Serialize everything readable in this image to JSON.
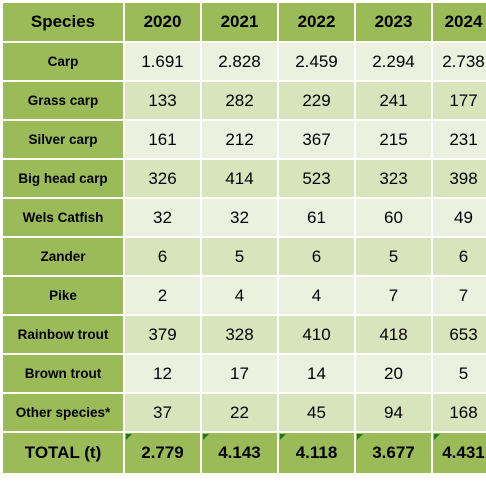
{
  "table": {
    "header": {
      "species_label": "Species",
      "years": [
        "2020",
        "2021",
        "2022",
        "2023",
        "2024"
      ]
    },
    "rows": [
      {
        "species": "Carp",
        "values": [
          "1.691",
          "2.828",
          "2.459",
          "2.294",
          "2.738"
        ]
      },
      {
        "species": "Grass carp",
        "values": [
          "133",
          "282",
          "229",
          "241",
          "177"
        ]
      },
      {
        "species": "Silver carp",
        "values": [
          "161",
          "212",
          "367",
          "215",
          "231"
        ]
      },
      {
        "species": "Big head carp",
        "values": [
          "326",
          "414",
          "523",
          "323",
          "398"
        ]
      },
      {
        "species": "Wels Catfish",
        "values": [
          "32",
          "32",
          "61",
          "60",
          "49"
        ]
      },
      {
        "species": "Zander",
        "values": [
          "6",
          "5",
          "6",
          "5",
          "6"
        ]
      },
      {
        "species": "Pike",
        "values": [
          "2",
          "4",
          "4",
          "7",
          "7"
        ]
      },
      {
        "species": "Rainbow trout",
        "values": [
          "379",
          "328",
          "410",
          "418",
          "653"
        ]
      },
      {
        "species": "Brown trout",
        "values": [
          "12",
          "17",
          "14",
          "20",
          "5"
        ]
      },
      {
        "species": "Other species*",
        "values": [
          "37",
          "22",
          "45",
          "94",
          "168"
        ]
      }
    ],
    "total": {
      "label": "TOTAL (t)",
      "values": [
        "2.779",
        "4.143",
        "4.118",
        "3.677",
        "4.431"
      ]
    }
  },
  "colors": {
    "header_green": "#9bbb59",
    "row_light": "#ebf1de",
    "row_dark": "#d7e4bc",
    "error_flag": "#1a7a1a"
  }
}
